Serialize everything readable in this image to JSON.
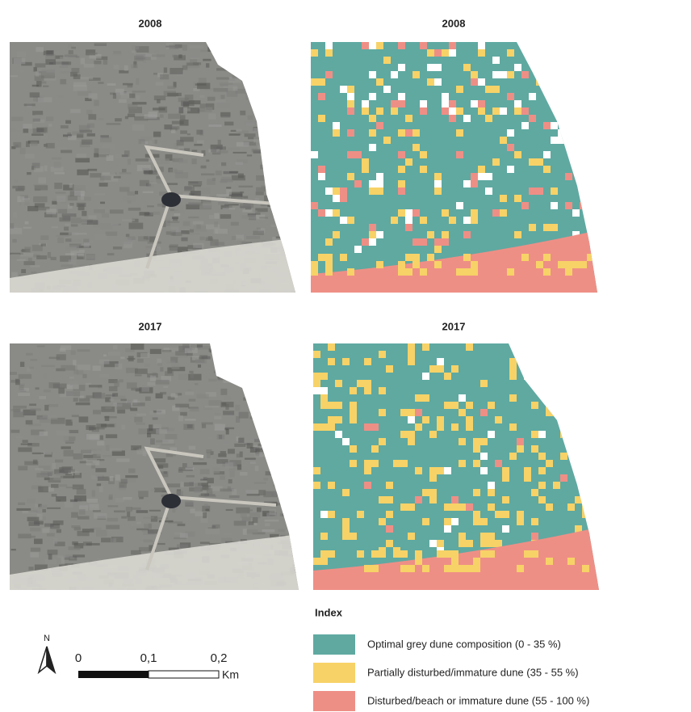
{
  "panels": [
    {
      "title": "2008"
    },
    {
      "title": "2008"
    },
    {
      "title": "2017"
    },
    {
      "title": "2017"
    }
  ],
  "legend": {
    "title": "Index",
    "items": [
      {
        "label": "Optimal grey dune composition (0 - 35 %)",
        "color": "#5fa9a1"
      },
      {
        "label": "Partially disturbed/immature dune (35 - 55 %)",
        "color": "#f7d267"
      },
      {
        "label": "Disturbed/beach or immature dune (55 - 100 %)",
        "color": "#ee8f86"
      }
    ]
  },
  "scale_bar": {
    "labels": [
      "0",
      "0,1",
      "0,2"
    ],
    "unit": "Km"
  },
  "north_arrow": {
    "label": "N"
  }
}
